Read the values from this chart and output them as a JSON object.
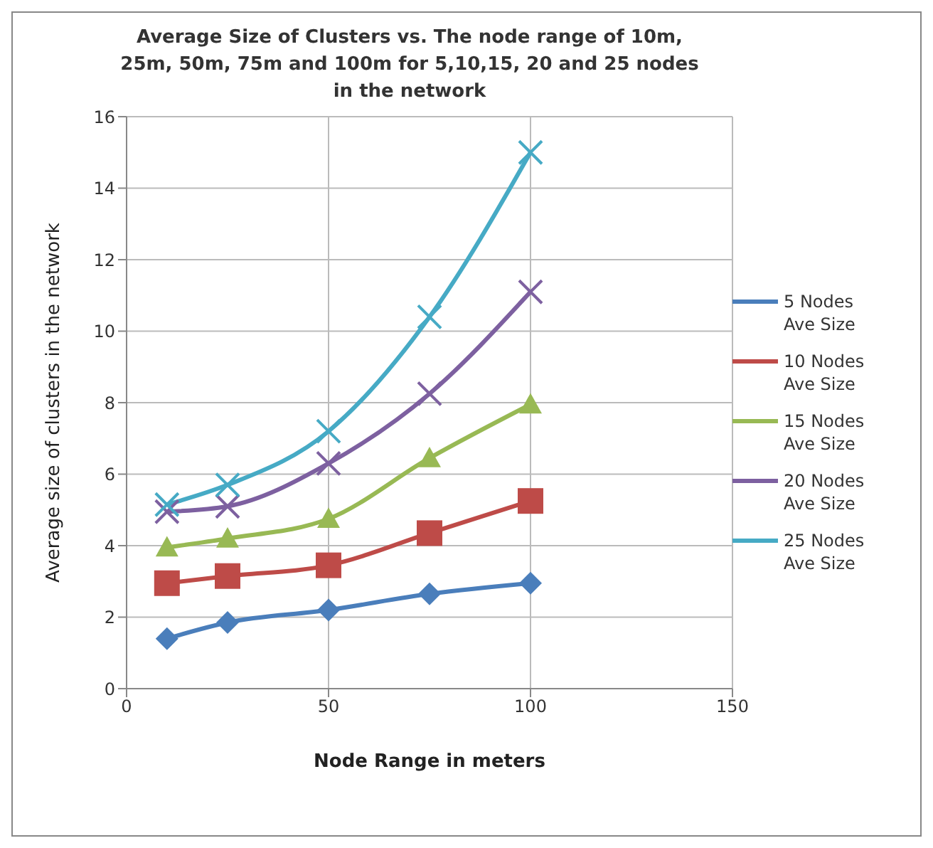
{
  "chart_data": {
    "type": "line",
    "title": "Average Size of Clusters vs. The node range of 10m, 25m, 50m, 75m and 100m  for 5,10,15, 20 and 25 nodes in the network",
    "xlabel": "Node Range in meters",
    "ylabel": "Average size of clusters in the network",
    "x": [
      10,
      25,
      50,
      75,
      100
    ],
    "xlim": [
      0,
      150
    ],
    "xticks": [
      0,
      50,
      100,
      150
    ],
    "ylim": [
      0,
      16
    ],
    "yticks": [
      0,
      2,
      4,
      6,
      8,
      10,
      12,
      14,
      16
    ],
    "grid": true,
    "legend": "right",
    "series": [
      {
        "name": "5 Nodes Ave Size",
        "color": "#4a7ebb",
        "marker": "diamond",
        "values": [
          1.4,
          1.85,
          2.2,
          2.65,
          2.95
        ]
      },
      {
        "name": "10 Nodes Ave Size",
        "color": "#be4b48",
        "marker": "square",
        "values": [
          2.95,
          3.15,
          3.45,
          4.35,
          5.25
        ]
      },
      {
        "name": "15 Nodes Ave Size",
        "color": "#98b954",
        "marker": "triangle",
        "values": [
          3.95,
          4.2,
          4.75,
          6.45,
          7.95
        ]
      },
      {
        "name": "20 Nodes Ave Size",
        "color": "#7d60a0",
        "marker": "cross",
        "values": [
          4.95,
          5.1,
          6.3,
          8.25,
          11.1
        ]
      },
      {
        "name": "25 Nodes Ave Size",
        "color": "#46aac5",
        "marker": "cross",
        "values": [
          5.15,
          5.7,
          7.2,
          10.4,
          15.0
        ]
      }
    ]
  }
}
